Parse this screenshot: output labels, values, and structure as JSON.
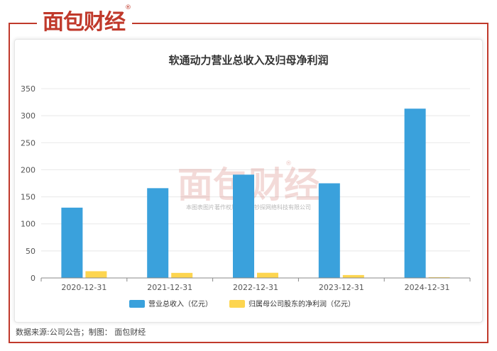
{
  "brand": {
    "logo_text": "面包财经",
    "logo_reg": "®",
    "watermark_text": "面包财经",
    "watermark_note": "本图表图片著作权属于上海钞探网络科技有限公司"
  },
  "footer": {
    "source_text": "数据来源:公司公告；制图： 面包财经"
  },
  "colors": {
    "brand_red": "#c0392b",
    "series_revenue": "#3aa1dc",
    "series_profit": "#fdd54f"
  },
  "chart_data": {
    "type": "bar",
    "title": "软通动力营业总收入及归母净利润",
    "categories": [
      "2020-12-31",
      "2021-12-31",
      "2022-12-31",
      "2023-12-31",
      "2024-12-31"
    ],
    "series": [
      {
        "name": "营业总收入（亿元）",
        "values": [
          130,
          166,
          191,
          175,
          313
        ]
      },
      {
        "name": "归属母公司股东的净利润（亿元）",
        "values": [
          12.5,
          9.4,
          9.6,
          5.4,
          1.4
        ]
      }
    ],
    "yticks": [
      0,
      50,
      100,
      150,
      200,
      250,
      300,
      350
    ],
    "ylim": [
      0,
      350
    ],
    "grid": true,
    "legend": "bottom"
  }
}
